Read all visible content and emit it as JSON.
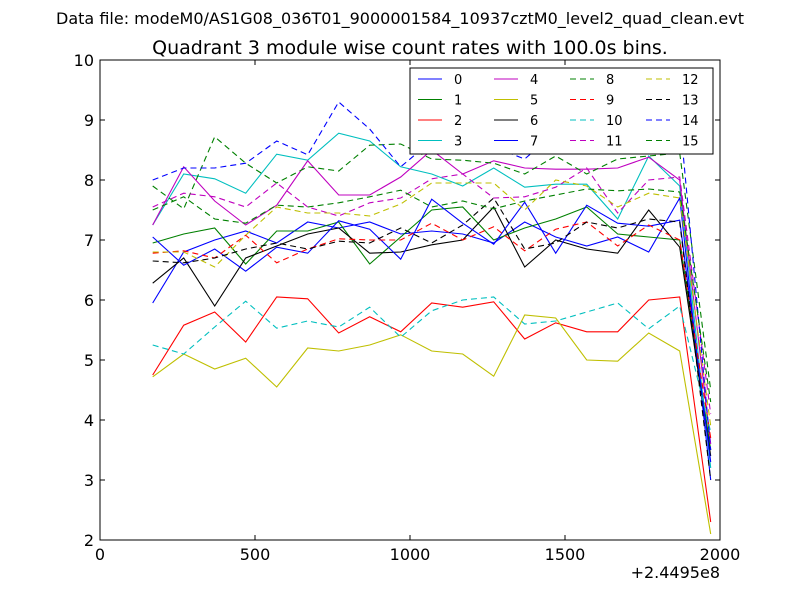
{
  "chart_data": {
    "type": "line",
    "suptitle": "Data file: modeM0/AS1G08_036T01_9000001584_10937cztM0_level2_quad_clean.evt",
    "title": "Quadrant 3 module wise count rates with 100.0s bins.",
    "xlabel": "",
    "ylabel": "",
    "x_offset_label": "+2.4495e8",
    "xlim": [
      0,
      2000
    ],
    "ylim": [
      2,
      10
    ],
    "xticks": [
      0,
      500,
      1000,
      1500,
      2000
    ],
    "yticks": [
      2,
      3,
      4,
      5,
      6,
      7,
      8,
      9,
      10
    ],
    "x": [
      170,
      270,
      370,
      470,
      570,
      670,
      770,
      870,
      970,
      1070,
      1170,
      1270,
      1370,
      1470,
      1570,
      1670,
      1770,
      1870,
      1970
    ],
    "legend_position": "top-right",
    "series": [
      {
        "name": "0",
        "color": "#0000ff",
        "style": "solid",
        "values": [
          5.95,
          6.8,
          7.0,
          7.15,
          6.95,
          7.3,
          7.2,
          7.3,
          7.1,
          7.15,
          7.1,
          6.95,
          7.3,
          7.05,
          6.9,
          7.05,
          6.8,
          7.7,
          3.0
        ]
      },
      {
        "name": "1",
        "color": "#008000",
        "style": "solid",
        "values": [
          6.95,
          7.1,
          7.2,
          6.6,
          7.15,
          7.15,
          7.3,
          6.6,
          7.05,
          7.5,
          7.55,
          7.0,
          7.2,
          7.35,
          7.55,
          7.1,
          7.05,
          7.0,
          3.5
        ]
      },
      {
        "name": "2",
        "color": "#ff0000",
        "style": "solid",
        "values": [
          4.75,
          5.58,
          5.8,
          5.3,
          6.05,
          6.02,
          5.45,
          5.72,
          5.47,
          5.95,
          5.88,
          5.97,
          5.35,
          5.62,
          5.47,
          5.47,
          6.0,
          6.05,
          2.3
        ]
      },
      {
        "name": "3",
        "color": "#00bfbf",
        "style": "solid",
        "values": [
          7.25,
          8.1,
          8.02,
          7.78,
          8.43,
          8.33,
          8.78,
          8.65,
          8.22,
          8.1,
          7.9,
          8.2,
          7.88,
          7.93,
          7.93,
          7.35,
          8.4,
          7.9,
          3.2
        ]
      },
      {
        "name": "4",
        "color": "#bf00bf",
        "style": "solid",
        "values": [
          7.25,
          8.22,
          7.65,
          7.25,
          7.58,
          8.32,
          7.75,
          7.75,
          8.05,
          8.5,
          8.1,
          8.32,
          8.2,
          8.18,
          8.18,
          8.2,
          8.38,
          8.0,
          3.6
        ]
      },
      {
        "name": "5",
        "color": "#bfbf00",
        "style": "solid",
        "values": [
          4.72,
          5.1,
          4.85,
          5.03,
          4.55,
          5.2,
          5.15,
          5.25,
          5.42,
          5.15,
          5.1,
          4.73,
          5.75,
          5.7,
          5.0,
          4.98,
          5.45,
          5.15,
          2.1
        ]
      },
      {
        "name": "6",
        "color": "#000000",
        "style": "solid",
        "values": [
          6.28,
          6.7,
          5.9,
          6.7,
          6.9,
          7.1,
          7.2,
          6.78,
          6.8,
          6.92,
          7.0,
          7.55,
          6.55,
          7.0,
          6.85,
          6.78,
          7.5,
          6.88,
          3.4
        ]
      },
      {
        "name": "7",
        "color": "#0000ff",
        "style": "solid",
        "values": [
          7.05,
          6.58,
          6.85,
          6.48,
          6.88,
          6.78,
          7.32,
          7.18,
          6.68,
          7.68,
          7.28,
          6.93,
          7.63,
          6.78,
          7.58,
          7.28,
          7.23,
          7.33,
          3.3
        ]
      },
      {
        "name": "8",
        "color": "#008000",
        "style": "dashed",
        "values": [
          7.9,
          7.52,
          8.72,
          8.28,
          7.95,
          8.22,
          8.15,
          8.58,
          8.6,
          8.35,
          8.33,
          8.28,
          8.1,
          8.4,
          8.1,
          8.35,
          8.4,
          8.45,
          4.5
        ]
      },
      {
        "name": "9",
        "color": "#ff0000",
        "style": "dashed",
        "values": [
          6.78,
          6.82,
          6.7,
          7.08,
          6.62,
          6.85,
          7.02,
          7.0,
          7.0,
          7.28,
          7.0,
          7.22,
          6.82,
          7.18,
          7.3,
          6.9,
          7.25,
          7.0,
          3.7
        ]
      },
      {
        "name": "10",
        "color": "#00bfbf",
        "style": "dashed",
        "values": [
          5.25,
          5.1,
          5.55,
          5.98,
          5.53,
          5.65,
          5.55,
          5.88,
          5.38,
          5.82,
          6.0,
          6.05,
          5.6,
          5.65,
          5.8,
          5.95,
          5.52,
          5.9,
          3.8
        ]
      },
      {
        "name": "11",
        "color": "#bf00bf",
        "style": "dashed",
        "values": [
          7.55,
          7.78,
          7.72,
          7.55,
          7.95,
          7.55,
          7.4,
          7.62,
          7.7,
          8.02,
          8.1,
          7.7,
          7.72,
          7.88,
          8.2,
          7.45,
          8.0,
          8.05,
          4.1
        ]
      },
      {
        "name": "12",
        "color": "#bfbf00",
        "style": "dashed",
        "values": [
          6.8,
          6.8,
          6.55,
          7.08,
          7.55,
          7.45,
          7.45,
          7.4,
          7.6,
          7.95,
          7.95,
          7.95,
          7.5,
          8.0,
          7.9,
          7.55,
          7.78,
          7.7,
          3.9
        ]
      },
      {
        "name": "13",
        "color": "#000000",
        "style": "dashed",
        "values": [
          6.65,
          6.62,
          6.7,
          6.85,
          6.95,
          6.85,
          6.98,
          6.95,
          7.2,
          6.95,
          7.25,
          7.7,
          6.85,
          6.95,
          7.3,
          7.2,
          7.35,
          7.3,
          3.0
        ]
      },
      {
        "name": "14",
        "color": "#0000ff",
        "style": "dashed",
        "values": [
          8.0,
          8.2,
          8.2,
          8.28,
          8.65,
          8.42,
          9.3,
          8.85,
          8.22,
          8.65,
          9.1,
          8.55,
          8.35,
          8.8,
          8.75,
          8.65,
          8.85,
          9.05,
          3.5
        ]
      },
      {
        "name": "15",
        "color": "#008000",
        "style": "dashed",
        "values": [
          7.5,
          7.72,
          7.35,
          7.28,
          7.58,
          7.55,
          7.62,
          7.72,
          7.83,
          7.55,
          7.65,
          7.52,
          7.65,
          7.75,
          7.85,
          7.82,
          7.85,
          7.8,
          4.3
        ]
      }
    ]
  }
}
